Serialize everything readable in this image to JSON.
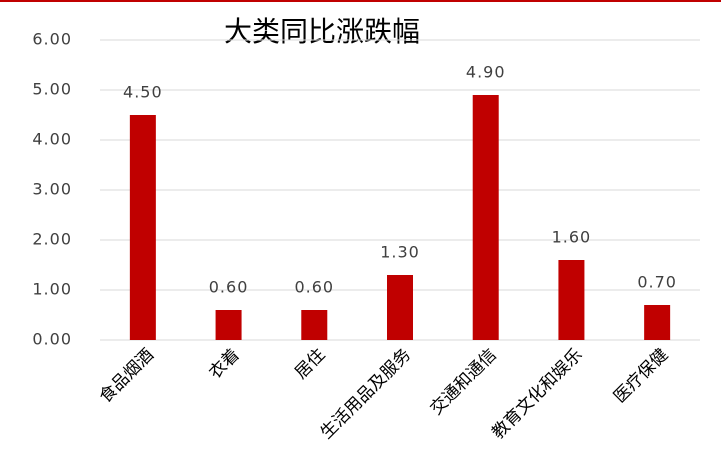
{
  "chart_data": {
    "type": "bar",
    "title": "大类同比涨跌幅",
    "categories": [
      "食品烟酒",
      "衣着",
      "居住",
      "生活用品及服务",
      "交通和通信",
      "教育文化和娱乐",
      "医疗保健"
    ],
    "values": [
      4.5,
      0.6,
      0.6,
      1.3,
      4.9,
      1.6,
      0.7
    ],
    "value_labels": [
      "4.50",
      "0.60",
      "0.60",
      "1.30",
      "4.90",
      "1.60",
      "0.70"
    ],
    "color": "#c00000",
    "ylim": [
      0,
      6
    ],
    "yticks": [
      {
        "value": 0,
        "label": "0.00"
      },
      {
        "value": 1,
        "label": "1.00"
      },
      {
        "value": 2,
        "label": "2.00"
      },
      {
        "value": 3,
        "label": "3.00"
      },
      {
        "value": 4,
        "label": "4.00"
      },
      {
        "value": 5,
        "label": "5.00"
      },
      {
        "value": 6,
        "label": "6.00"
      }
    ],
    "grid": true
  }
}
